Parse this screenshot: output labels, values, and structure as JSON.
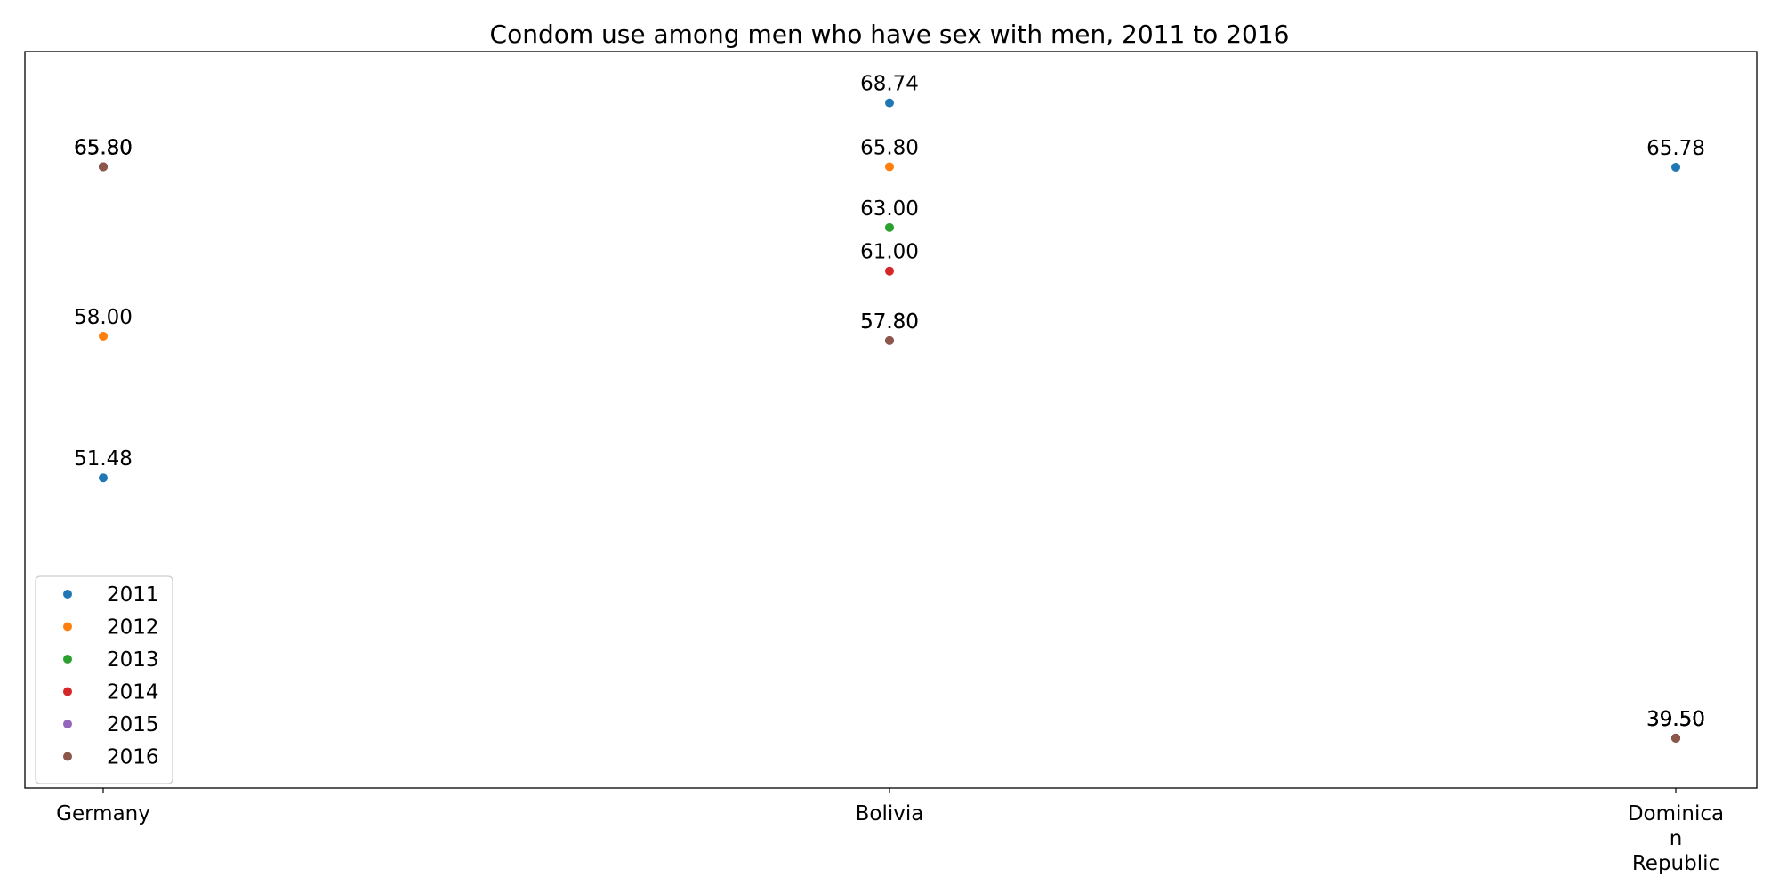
{
  "chart_data": {
    "type": "scatter",
    "title": "Condom use among men who have sex with men, 2011 to 2016",
    "xlabel": "",
    "ylabel": "",
    "categories": [
      "Germany",
      "Bolivia",
      "Dominican Republic"
    ],
    "category_tick_labels": [
      [
        "Germany"
      ],
      [
        "Bolivia"
      ],
      [
        "Dominica",
        "n",
        "Republic"
      ]
    ],
    "ylim": [
      37.2,
      71.1
    ],
    "grid": false,
    "show_y_axis_ticks": false,
    "legend_position": "bottom-left",
    "series": [
      {
        "name": "2011",
        "color": "#1f77b4",
        "values": [
          51.48,
          68.74,
          65.78
        ]
      },
      {
        "name": "2012",
        "color": "#ff7f0e",
        "values": [
          58.0,
          65.8,
          39.5
        ]
      },
      {
        "name": "2013",
        "color": "#2ca02c",
        "values": [
          65.8,
          63.0,
          39.5
        ]
      },
      {
        "name": "2014",
        "color": "#d62728",
        "values": [
          65.8,
          61.0,
          39.5
        ]
      },
      {
        "name": "2015",
        "color": "#9467bd",
        "values": [
          65.8,
          57.8,
          39.5
        ]
      },
      {
        "name": "2016",
        "color": "#8c564b",
        "values": [
          65.8,
          57.8,
          39.5
        ]
      }
    ],
    "value_format_decimals": 2
  }
}
